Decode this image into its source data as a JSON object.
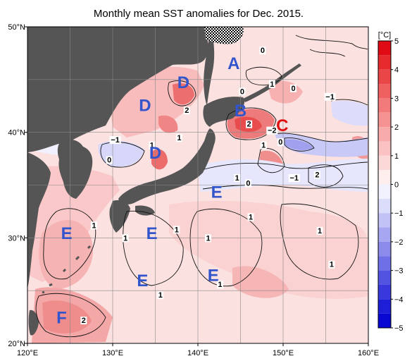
{
  "title": "Monthly mean SST anomalies for Dec. 2015.",
  "map": {
    "lon_range": [
      120,
      160
    ],
    "lat_range": [
      20,
      50
    ],
    "lon_ticks": [
      {
        "v": 120,
        "label": "120°E"
      },
      {
        "v": 130,
        "label": "130°E"
      },
      {
        "v": 140,
        "label": "140°E"
      },
      {
        "v": 150,
        "label": "150°E"
      },
      {
        "v": 160,
        "label": "160°E"
      }
    ],
    "lat_ticks": [
      {
        "v": 20,
        "label": "20°N"
      },
      {
        "v": 30,
        "label": "30°N"
      },
      {
        "v": 40,
        "label": "40°N"
      },
      {
        "v": 50,
        "label": "50°N"
      }
    ],
    "land_color": "#555555",
    "grid": true,
    "region_labels": [
      {
        "text": "A",
        "lon": 144.2,
        "lat": 46.0,
        "color": "#3355cc"
      },
      {
        "text": "D",
        "lon": 138.3,
        "lat": 44.2,
        "color": "#3355cc"
      },
      {
        "text": "D",
        "lon": 133.8,
        "lat": 42.0,
        "color": "#3355cc"
      },
      {
        "text": "D",
        "lon": 135.0,
        "lat": 37.5,
        "color": "#3355cc"
      },
      {
        "text": "B",
        "lon": 145.0,
        "lat": 41.5,
        "color": "#3355cc"
      },
      {
        "text": "C",
        "lon": 149.9,
        "lat": 40.1,
        "color": "#dd1111"
      },
      {
        "text": "E",
        "lon": 142.2,
        "lat": 33.8,
        "color": "#3355cc"
      },
      {
        "text": "E",
        "lon": 124.6,
        "lat": 29.9,
        "color": "#3355cc"
      },
      {
        "text": "E",
        "lon": 134.6,
        "lat": 29.9,
        "color": "#3355cc"
      },
      {
        "text": "E",
        "lon": 133.5,
        "lat": 25.4,
        "color": "#3355cc"
      },
      {
        "text": "E",
        "lon": 141.8,
        "lat": 25.9,
        "color": "#3355cc"
      },
      {
        "text": "F",
        "lon": 124.0,
        "lat": 21.9,
        "color": "#3355cc"
      }
    ],
    "contour_labels": [
      {
        "text": "0",
        "lon": 147.6,
        "lat": 47.6
      },
      {
        "text": "1",
        "lon": 148.7,
        "lat": 44.4
      },
      {
        "text": "0",
        "lon": 151.2,
        "lat": 44.0
      },
      {
        "text": "0",
        "lon": 145.2,
        "lat": 43.7
      },
      {
        "text": "−1",
        "lon": 155.5,
        "lat": 43.2
      },
      {
        "text": "2",
        "lon": 138.7,
        "lat": 41.9
      },
      {
        "text": "2",
        "lon": 146.0,
        "lat": 40.6
      },
      {
        "text": "−2",
        "lon": 148.7,
        "lat": 40.0
      },
      {
        "text": "−1",
        "lon": 130.3,
        "lat": 39.1
      },
      {
        "text": "1",
        "lon": 134.6,
        "lat": 38.6
      },
      {
        "text": "1",
        "lon": 137.8,
        "lat": 39.3
      },
      {
        "text": "1",
        "lon": 147.7,
        "lat": 38.6
      },
      {
        "text": "0",
        "lon": 149.7,
        "lat": 38.9
      },
      {
        "text": "0",
        "lon": 129.6,
        "lat": 37.2
      },
      {
        "text": "2",
        "lon": 154.0,
        "lat": 35.8
      },
      {
        "text": "−1",
        "lon": 151.3,
        "lat": 35.5
      },
      {
        "text": "1",
        "lon": 144.6,
        "lat": 35.5
      },
      {
        "text": "0",
        "lon": 145.9,
        "lat": 35.0
      },
      {
        "text": "1",
        "lon": 146.2,
        "lat": 31.8
      },
      {
        "text": "1",
        "lon": 127.8,
        "lat": 31.0
      },
      {
        "text": "1",
        "lon": 131.5,
        "lat": 29.8
      },
      {
        "text": "1",
        "lon": 137.5,
        "lat": 30.6
      },
      {
        "text": "1",
        "lon": 141.2,
        "lat": 29.8
      },
      {
        "text": "1",
        "lon": 154.3,
        "lat": 30.5
      },
      {
        "text": "1",
        "lon": 155.7,
        "lat": 27.3
      },
      {
        "text": "1",
        "lon": 142.6,
        "lat": 25.4
      },
      {
        "text": "1",
        "lon": 135.6,
        "lat": 24.4
      },
      {
        "text": "2",
        "lon": 126.6,
        "lat": 22.0
      }
    ]
  },
  "colorbar": {
    "unit": "[°C]",
    "ticks": [
      {
        "v": 5,
        "label": "5"
      },
      {
        "v": 4,
        "label": "4"
      },
      {
        "v": 3,
        "label": "3"
      },
      {
        "v": 2,
        "label": "2"
      },
      {
        "v": 1,
        "label": "1"
      },
      {
        "v": 0,
        "label": "0"
      },
      {
        "v": -1,
        "label": "−1"
      },
      {
        "v": -2,
        "label": "−2"
      },
      {
        "v": -3,
        "label": "−3"
      },
      {
        "v": -4,
        "label": "−4"
      },
      {
        "v": -5,
        "label": "−5"
      }
    ],
    "colors": [
      {
        "from": 4.5,
        "to": 5.0,
        "color": "#e00b14"
      },
      {
        "from": 4.0,
        "to": 4.5,
        "color": "#e62a2e"
      },
      {
        "from": 3.5,
        "to": 4.0,
        "color": "#ea4547"
      },
      {
        "from": 3.0,
        "to": 3.5,
        "color": "#ef6061"
      },
      {
        "from": 2.5,
        "to": 3.0,
        "color": "#f27a7a"
      },
      {
        "from": 2.0,
        "to": 2.5,
        "color": "#f59393"
      },
      {
        "from": 1.5,
        "to": 2.0,
        "color": "#f8abab"
      },
      {
        "from": 1.0,
        "to": 1.5,
        "color": "#fac2c2"
      },
      {
        "from": 0.5,
        "to": 1.0,
        "color": "#fcd9d9"
      },
      {
        "from": 0.0,
        "to": 0.5,
        "color": "#feeeee"
      },
      {
        "from": -0.5,
        "to": 0.0,
        "color": "#f2f2ff"
      },
      {
        "from": -1.0,
        "to": -0.5,
        "color": "#dcdcfb"
      },
      {
        "from": -1.5,
        "to": -1.0,
        "color": "#c2c2f6"
      },
      {
        "from": -2.0,
        "to": -1.5,
        "color": "#a7a7f1"
      },
      {
        "from": -2.5,
        "to": -2.0,
        "color": "#8b8bec"
      },
      {
        "from": -3.0,
        "to": -2.5,
        "color": "#6f6fe7"
      },
      {
        "from": -3.5,
        "to": -3.0,
        "color": "#5353e2"
      },
      {
        "from": -4.0,
        "to": -3.5,
        "color": "#3838dd"
      },
      {
        "from": -4.5,
        "to": -4.0,
        "color": "#1e1ed8"
      },
      {
        "from": -5.0,
        "to": -4.5,
        "color": "#0808d2"
      }
    ]
  }
}
